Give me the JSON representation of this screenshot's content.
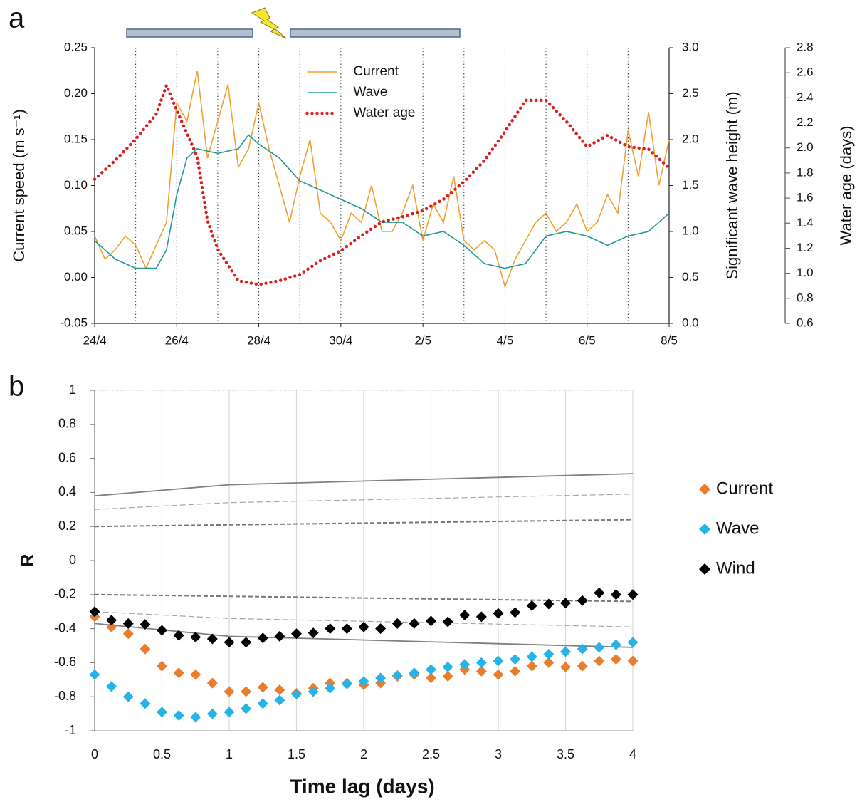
{
  "chart_data": [
    {
      "type": "line",
      "panel_label": "a",
      "xlim": [
        0,
        14
      ],
      "xticks": [
        {
          "value": 0,
          "label": "24/4"
        },
        {
          "value": 2,
          "label": "26/4"
        },
        {
          "value": 4,
          "label": "28/4"
        },
        {
          "value": 6,
          "label": "30/4"
        },
        {
          "value": 8,
          "label": "2/5"
        },
        {
          "value": 10,
          "label": "4/5"
        },
        {
          "value": 12,
          "label": "6/5"
        },
        {
          "value": 14,
          "label": "8/5"
        }
      ],
      "ylabel": "Current speed (m s⁻¹)",
      "ylim": [
        -0.05,
        0.25
      ],
      "yticks": [
        -0.05,
        {
          "value": 0,
          "label": "0.00"
        },
        0.05,
        {
          "value": 0.1,
          "label": "0.10"
        },
        0.15,
        {
          "value": 0.2,
          "label": "0.20"
        },
        0.25
      ],
      "y2label": "Significant wave height (m)",
      "y2lim": [
        0,
        3
      ],
      "y2ticks": [
        {
          "value": 0,
          "label": "0.0"
        },
        0.5,
        {
          "value": 1,
          "label": "1.0"
        },
        1.5,
        {
          "value": 2,
          "label": "2.0"
        },
        2.5,
        {
          "value": 3,
          "label": "3.0"
        }
      ],
      "y3label": "Water age (days)",
      "y3lim": [
        0.6,
        2.8
      ],
      "y3ticks": [
        0.6,
        0.8,
        {
          "value": 1,
          "label": "1.0"
        },
        1.2,
        1.4,
        1.6,
        1.8,
        {
          "value": 2,
          "label": "2.0"
        },
        2.2,
        2.4,
        2.6,
        2.8
      ],
      "grid": true,
      "legend": "upper center",
      "series": [
        {
          "name": "Current",
          "color": "#f0a030",
          "axis": "y",
          "style": "solid",
          "x": [
            0,
            0.25,
            0.5,
            0.75,
            1,
            1.25,
            1.5,
            1.75,
            2,
            2.25,
            2.5,
            2.75,
            3,
            3.25,
            3.5,
            3.75,
            4,
            4.25,
            4.5,
            4.75,
            5,
            5.25,
            5.5,
            5.75,
            6,
            6.25,
            6.5,
            6.75,
            7,
            7.25,
            7.5,
            7.75,
            8,
            8.25,
            8.5,
            8.75,
            9,
            9.25,
            9.5,
            9.75,
            10,
            10.25,
            10.5,
            10.75,
            11,
            11.25,
            11.5,
            11.75,
            12,
            12.25,
            12.5,
            12.75,
            13,
            13.25,
            13.5,
            13.75,
            14
          ],
          "values": [
            0.045,
            0.02,
            0.03,
            0.045,
            0.035,
            0.01,
            0.035,
            0.06,
            0.19,
            0.17,
            0.225,
            0.13,
            0.17,
            0.21,
            0.12,
            0.14,
            0.19,
            0.14,
            0.1,
            0.06,
            0.11,
            0.15,
            0.07,
            0.06,
            0.04,
            0.07,
            0.06,
            0.1,
            0.05,
            0.05,
            0.07,
            0.1,
            0.04,
            0.08,
            0.06,
            0.11,
            0.04,
            0.03,
            0.04,
            0.03,
            -0.01,
            0.02,
            0.04,
            0.06,
            0.07,
            0.05,
            0.06,
            0.08,
            0.05,
            0.06,
            0.09,
            0.07,
            0.16,
            0.11,
            0.18,
            0.1,
            0.15
          ]
        },
        {
          "name": "Wave",
          "color": "#1f9a96",
          "axis": "y2",
          "style": "solid",
          "x": [
            0,
            0.5,
            1,
            1.5,
            1.75,
            2,
            2.25,
            2.5,
            3,
            3.5,
            3.75,
            4,
            4.5,
            5,
            5.5,
            6,
            6.5,
            7,
            7.5,
            8,
            8.5,
            9,
            9.5,
            10,
            10.5,
            11,
            11.5,
            12,
            12.5,
            13,
            13.5,
            14
          ],
          "values": [
            0.9,
            0.7,
            0.6,
            0.6,
            0.8,
            1.4,
            1.8,
            1.9,
            1.85,
            1.9,
            2.05,
            1.95,
            1.8,
            1.55,
            1.45,
            1.35,
            1.25,
            1.1,
            1.1,
            0.95,
            1.0,
            0.85,
            0.65,
            0.6,
            0.65,
            0.95,
            1.0,
            0.95,
            0.85,
            0.95,
            1.0,
            1.2
          ]
        },
        {
          "name": "Water age",
          "color": "#d92020",
          "axis": "y3",
          "style": "dotted",
          "x": [
            0,
            0.5,
            1,
            1.5,
            1.75,
            2,
            2.5,
            2.75,
            3,
            3.5,
            4,
            4.5,
            5,
            5.5,
            6,
            6.5,
            7,
            7.5,
            8,
            8.5,
            9,
            9.5,
            10,
            10.5,
            11,
            11.5,
            12,
            12.5,
            13,
            13.5,
            14
          ],
          "values": [
            1.75,
            1.9,
            2.07,
            2.27,
            2.5,
            2.3,
            1.93,
            1.42,
            1.19,
            0.94,
            0.91,
            0.94,
            0.99,
            1.1,
            1.18,
            1.3,
            1.41,
            1.45,
            1.5,
            1.59,
            1.73,
            1.9,
            2.13,
            2.38,
            2.38,
            2.21,
            2.01,
            2.1,
            2.01,
            1.99,
            1.84
          ]
        }
      ]
    },
    {
      "type": "scatter",
      "panel_label": "b",
      "marker": "diamond",
      "xlabel": "Time lag (days)",
      "ylabel": "R",
      "xlim": [
        0,
        4
      ],
      "xticks": [
        0,
        0.5,
        1,
        1.5,
        2,
        2.5,
        3,
        3.5,
        4
      ],
      "ylim": [
        -1,
        1
      ],
      "yticks": [
        -1,
        -0.8,
        -0.6,
        -0.4,
        -0.2,
        0,
        0.2,
        0.4,
        0.6,
        0.8,
        1
      ],
      "grid": true,
      "legend": "right",
      "x": [
        0,
        0.125,
        0.25,
        0.375,
        0.5,
        0.625,
        0.75,
        0.875,
        1,
        1.125,
        1.25,
        1.375,
        1.5,
        1.625,
        1.75,
        1.875,
        2,
        2.125,
        2.25,
        2.375,
        2.5,
        2.625,
        2.75,
        2.875,
        3,
        3.125,
        3.25,
        3.375,
        3.5,
        3.625,
        3.75,
        3.875,
        4
      ],
      "series": [
        {
          "name": "Current",
          "color": "#e87d2e",
          "values": [
            -0.33,
            -0.39,
            -0.43,
            -0.52,
            -0.62,
            -0.66,
            -0.67,
            -0.72,
            -0.77,
            -0.77,
            -0.745,
            -0.76,
            -0.78,
            -0.75,
            -0.72,
            -0.72,
            -0.73,
            -0.72,
            -0.68,
            -0.67,
            -0.69,
            -0.68,
            -0.64,
            -0.65,
            -0.67,
            -0.65,
            -0.62,
            -0.6,
            -0.625,
            -0.62,
            -0.59,
            -0.58,
            -0.59
          ]
        },
        {
          "name": "Wave",
          "color": "#26b4e8",
          "values": [
            -0.67,
            -0.74,
            -0.8,
            -0.84,
            -0.89,
            -0.91,
            -0.92,
            -0.9,
            -0.89,
            -0.87,
            -0.84,
            -0.82,
            -0.785,
            -0.77,
            -0.75,
            -0.725,
            -0.71,
            -0.69,
            -0.675,
            -0.66,
            -0.64,
            -0.625,
            -0.61,
            -0.6,
            -0.59,
            -0.58,
            -0.565,
            -0.55,
            -0.535,
            -0.52,
            -0.51,
            -0.495,
            -0.48
          ]
        },
        {
          "name": "Wind",
          "color": "#000000",
          "values": [
            -0.3,
            -0.35,
            -0.37,
            -0.375,
            -0.41,
            -0.44,
            -0.45,
            -0.46,
            -0.48,
            -0.48,
            -0.455,
            -0.445,
            -0.43,
            -0.425,
            -0.4,
            -0.4,
            -0.39,
            -0.4,
            -0.37,
            -0.37,
            -0.355,
            -0.36,
            -0.32,
            -0.33,
            -0.31,
            -0.305,
            -0.265,
            -0.255,
            -0.25,
            -0.235,
            -0.19,
            -0.2,
            -0.2
          ]
        }
      ],
      "reference_lines": [
        {
          "style": "solid",
          "color": "#808080",
          "x": [
            0,
            1,
            4
          ],
          "values": [
            0.38,
            0.445,
            0.51
          ]
        },
        {
          "style": "solid",
          "color": "#808080",
          "x": [
            0,
            1,
            4
          ],
          "values": [
            -0.37,
            -0.445,
            -0.51
          ]
        },
        {
          "style": "dashed",
          "color": "#a6a6a6",
          "x": [
            0,
            1,
            4
          ],
          "values": [
            0.3,
            0.34,
            0.39
          ]
        },
        {
          "style": "dashed",
          "color": "#a6a6a6",
          "x": [
            0,
            1,
            4
          ],
          "values": [
            -0.3,
            -0.34,
            -0.39
          ]
        },
        {
          "style": "bold-dashed",
          "color": "#777777",
          "x": [
            0,
            1,
            4
          ],
          "values": [
            0.2,
            0.21,
            0.24
          ]
        },
        {
          "style": "bold-dashed",
          "color": "#777777",
          "x": [
            0,
            1,
            4
          ],
          "values": [
            -0.2,
            -0.21,
            -0.24
          ]
        }
      ]
    }
  ]
}
